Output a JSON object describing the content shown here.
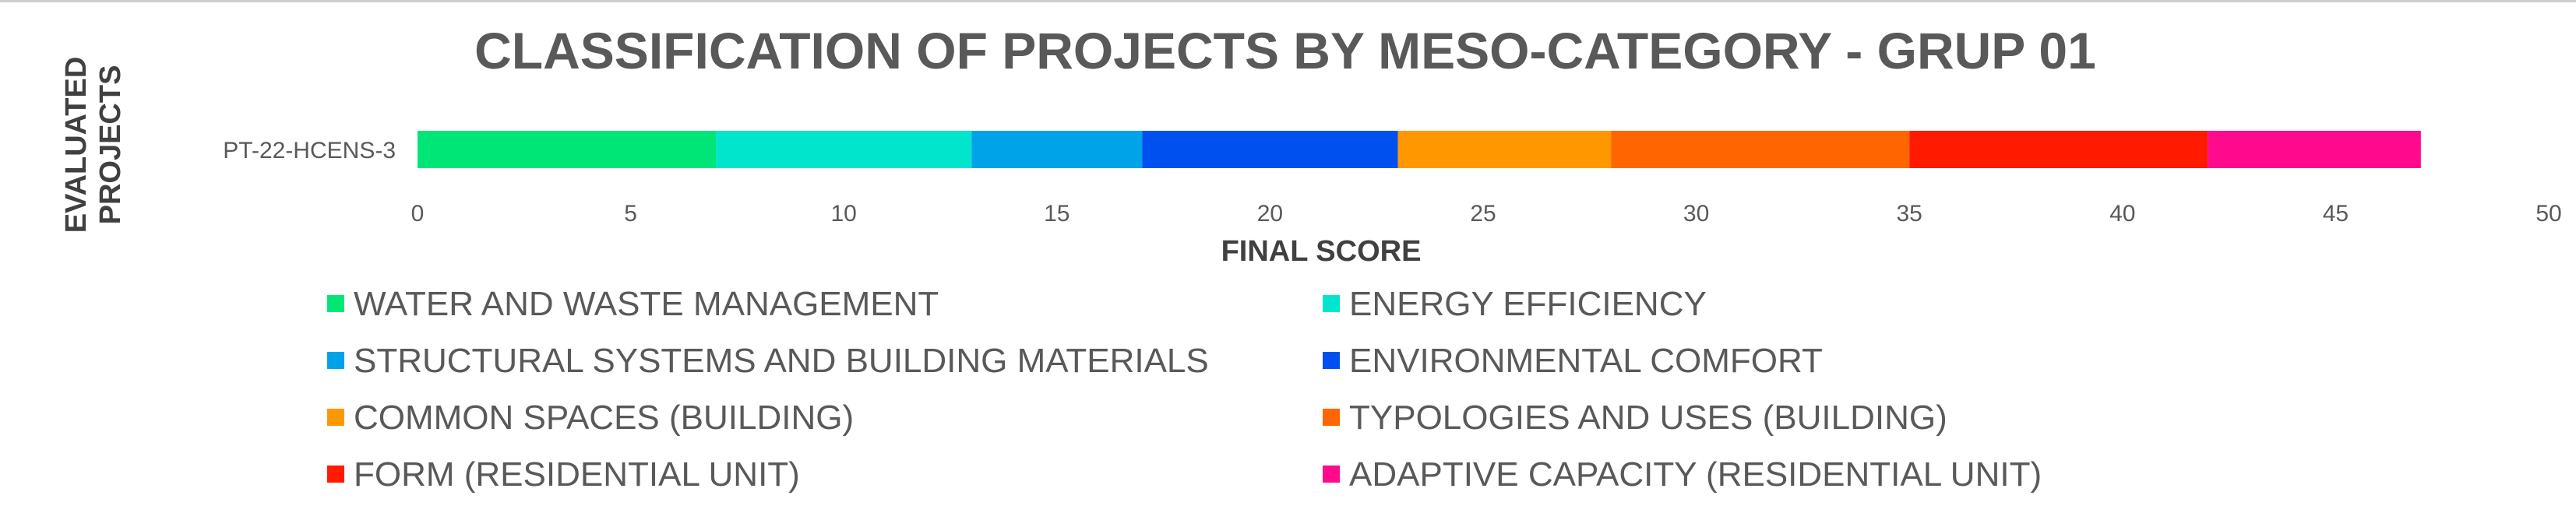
{
  "chart_data": {
    "type": "bar",
    "orientation": "horizontal",
    "stacked": true,
    "title": "CLASSIFICATION OF PROJECTS BY MESO-CATEGORY - GRUP 01",
    "xlabel": "FINAL SCORE",
    "ylabel": "EVALUATED PROJECTS",
    "categories": [
      "PT-22-HCENS-3"
    ],
    "xlim": [
      0,
      50
    ],
    "xticks": [
      0,
      5,
      10,
      15,
      20,
      25,
      30,
      35,
      40,
      45,
      50
    ],
    "grid": false,
    "legend_position": "bottom",
    "series": [
      {
        "name": "WATER AND WASTE MANAGEMENT",
        "values": [
          7
        ],
        "color": "#00E676"
      },
      {
        "name": "ENERGY EFFICIENCY",
        "values": [
          6
        ],
        "color": "#00E5CC"
      },
      {
        "name": "STRUCTURAL SYSTEMS AND BUILDING MATERIALS",
        "values": [
          4
        ],
        "color": "#00A2E8"
      },
      {
        "name": "ENVIRONMENTAL COMFORT",
        "values": [
          6
        ],
        "color": "#0050F0"
      },
      {
        "name": "COMMON SPACES (BUILDING)",
        "values": [
          5
        ],
        "color": "#FF9800"
      },
      {
        "name": "TYPOLOGIES AND USES (BUILDING)",
        "values": [
          7
        ],
        "color": "#FF6600"
      },
      {
        "name": "FORM (RESIDENTIAL UNIT)",
        "values": [
          7
        ],
        "color": "#FF1A00"
      },
      {
        "name": "ADAPTIVE CAPACITY (RESIDENTIAL UNIT)",
        "values": [
          5
        ],
        "color": "#FF0A8C"
      }
    ]
  }
}
